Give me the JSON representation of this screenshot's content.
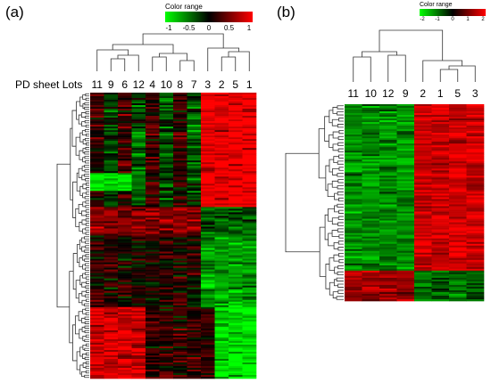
{
  "figure": {
    "panel_a_label": "(a)",
    "panel_b_label": "(b)",
    "panel_a_row_title": "PD sheet Lots"
  },
  "legend_a": {
    "title": "Color range",
    "ticks": [
      "-1",
      "-0.5",
      "0",
      "0.5",
      "1"
    ],
    "colors": [
      "#00ff00",
      "#000000",
      "#ff0000"
    ]
  },
  "legend_b": {
    "title": "Color range",
    "ticks": [
      "-2",
      "-1",
      "0",
      "1",
      "2"
    ],
    "colors": [
      "#00ff00",
      "#000000",
      "#ff0000"
    ]
  },
  "chart_data": [
    {
      "type": "heatmap",
      "panel": "(a)",
      "title": "",
      "row_axis_title": "PD sheet Lots",
      "columns": [
        "11",
        "9",
        "6",
        "12",
        "4",
        "10",
        "8",
        "7",
        "3",
        "2",
        "5",
        "1"
      ],
      "color_scale": {
        "min": -1,
        "max": 1,
        "low": "#00ff00",
        "mid": "#000000",
        "high": "#ff0000"
      },
      "column_dendrogram": true,
      "row_dendrogram": true,
      "n_row_clusters_visible": 3
    },
    {
      "type": "heatmap",
      "panel": "(b)",
      "title": "",
      "columns": [
        "11",
        "10",
        "12",
        "9",
        "2",
        "1",
        "5",
        "3"
      ],
      "color_scale": {
        "min": -2,
        "max": 2,
        "low": "#00ff00",
        "mid": "#000000",
        "high": "#ff0000"
      },
      "column_dendrogram": true,
      "row_dendrogram": true
    }
  ]
}
